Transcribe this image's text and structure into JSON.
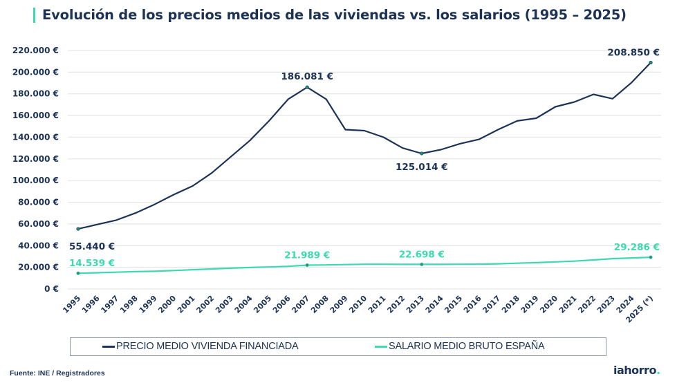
{
  "title": "Evolución de los precios medios de las viviendas vs. los salarios (1995 – 2025)",
  "colors": {
    "accent": "#3dd9b1",
    "dark": "#1c3355",
    "grid": "#e6e6e6"
  },
  "legend": {
    "items": [
      {
        "label": "PRECIO MEDIO VIVIENDA FINANCIADA",
        "color": "#1c3355"
      },
      {
        "label": "SALARIO MEDIO BRUTO ESPAÑA",
        "color": "#3dd9b1"
      }
    ]
  },
  "source": "Fuente: INE / Registradores",
  "logo": {
    "text": "iahorro",
    "dot": "."
  },
  "chart_data": {
    "type": "line",
    "title": "Evolución de los precios medios de las viviendas vs. los salarios (1995 – 2025)",
    "xlabel": "",
    "ylabel": "",
    "ylim": [
      0,
      220000
    ],
    "yticks": [
      0,
      20000,
      40000,
      60000,
      80000,
      100000,
      120000,
      140000,
      160000,
      180000,
      200000,
      220000
    ],
    "ytick_labels": [
      "0 €",
      "20.000 €",
      "40.000 €",
      "60.000 €",
      "80.000 €",
      "100.000 €",
      "120.000 €",
      "140.000 €",
      "160.000 €",
      "180.000 €",
      "200.000 €",
      "220.000 €"
    ],
    "grid": true,
    "legend_position": "bottom",
    "categories": [
      "1995",
      "1996",
      "1997",
      "1998",
      "1999",
      "2000",
      "2001",
      "2002",
      "2003",
      "2004",
      "2005",
      "2006",
      "2007",
      "2008",
      "2009",
      "2010",
      "2011",
      "2012",
      "2013",
      "2014",
      "2015",
      "2016",
      "2017",
      "2018",
      "2019",
      "2020",
      "2021",
      "2022",
      "2023",
      "2024",
      "2025 (*)"
    ],
    "series": [
      {
        "name": "PRECIO MEDIO VIVIENDA FINANCIADA",
        "color": "#1c3355",
        "values": [
          55440,
          59500,
          63500,
          70000,
          78000,
          87000,
          95000,
          107000,
          122000,
          137000,
          155000,
          175000,
          186081,
          175000,
          147000,
          146000,
          140000,
          130000,
          125014,
          128500,
          134000,
          138000,
          147000,
          155000,
          157500,
          168000,
          172500,
          179500,
          175500,
          190500,
          208850
        ],
        "annotations": [
          {
            "index": 0,
            "label": "55.440 €",
            "position": "below"
          },
          {
            "index": 12,
            "label": "186.081 €",
            "position": "above"
          },
          {
            "index": 18,
            "label": "125.014 €",
            "position": "below"
          },
          {
            "index": 30,
            "label": "208.850 €",
            "position": "above"
          }
        ]
      },
      {
        "name": "SALARIO MEDIO BRUTO ESPAÑA",
        "color": "#3dd9b1",
        "values": [
          14539,
          15000,
          15500,
          16000,
          16300,
          17000,
          17800,
          18500,
          19200,
          19800,
          20300,
          20900,
          21989,
          22200,
          22500,
          22800,
          22800,
          22700,
          22698,
          22700,
          22800,
          22900,
          23200,
          23800,
          24300,
          25000,
          25700,
          26800,
          28000,
          28600,
          29286
        ],
        "annotations": [
          {
            "index": 0,
            "label": "14.539 €",
            "position": "above"
          },
          {
            "index": 12,
            "label": "21.989 €",
            "position": "above"
          },
          {
            "index": 18,
            "label": "22.698 €",
            "position": "above"
          },
          {
            "index": 30,
            "label": "29.286 €",
            "position": "above"
          }
        ]
      }
    ]
  }
}
